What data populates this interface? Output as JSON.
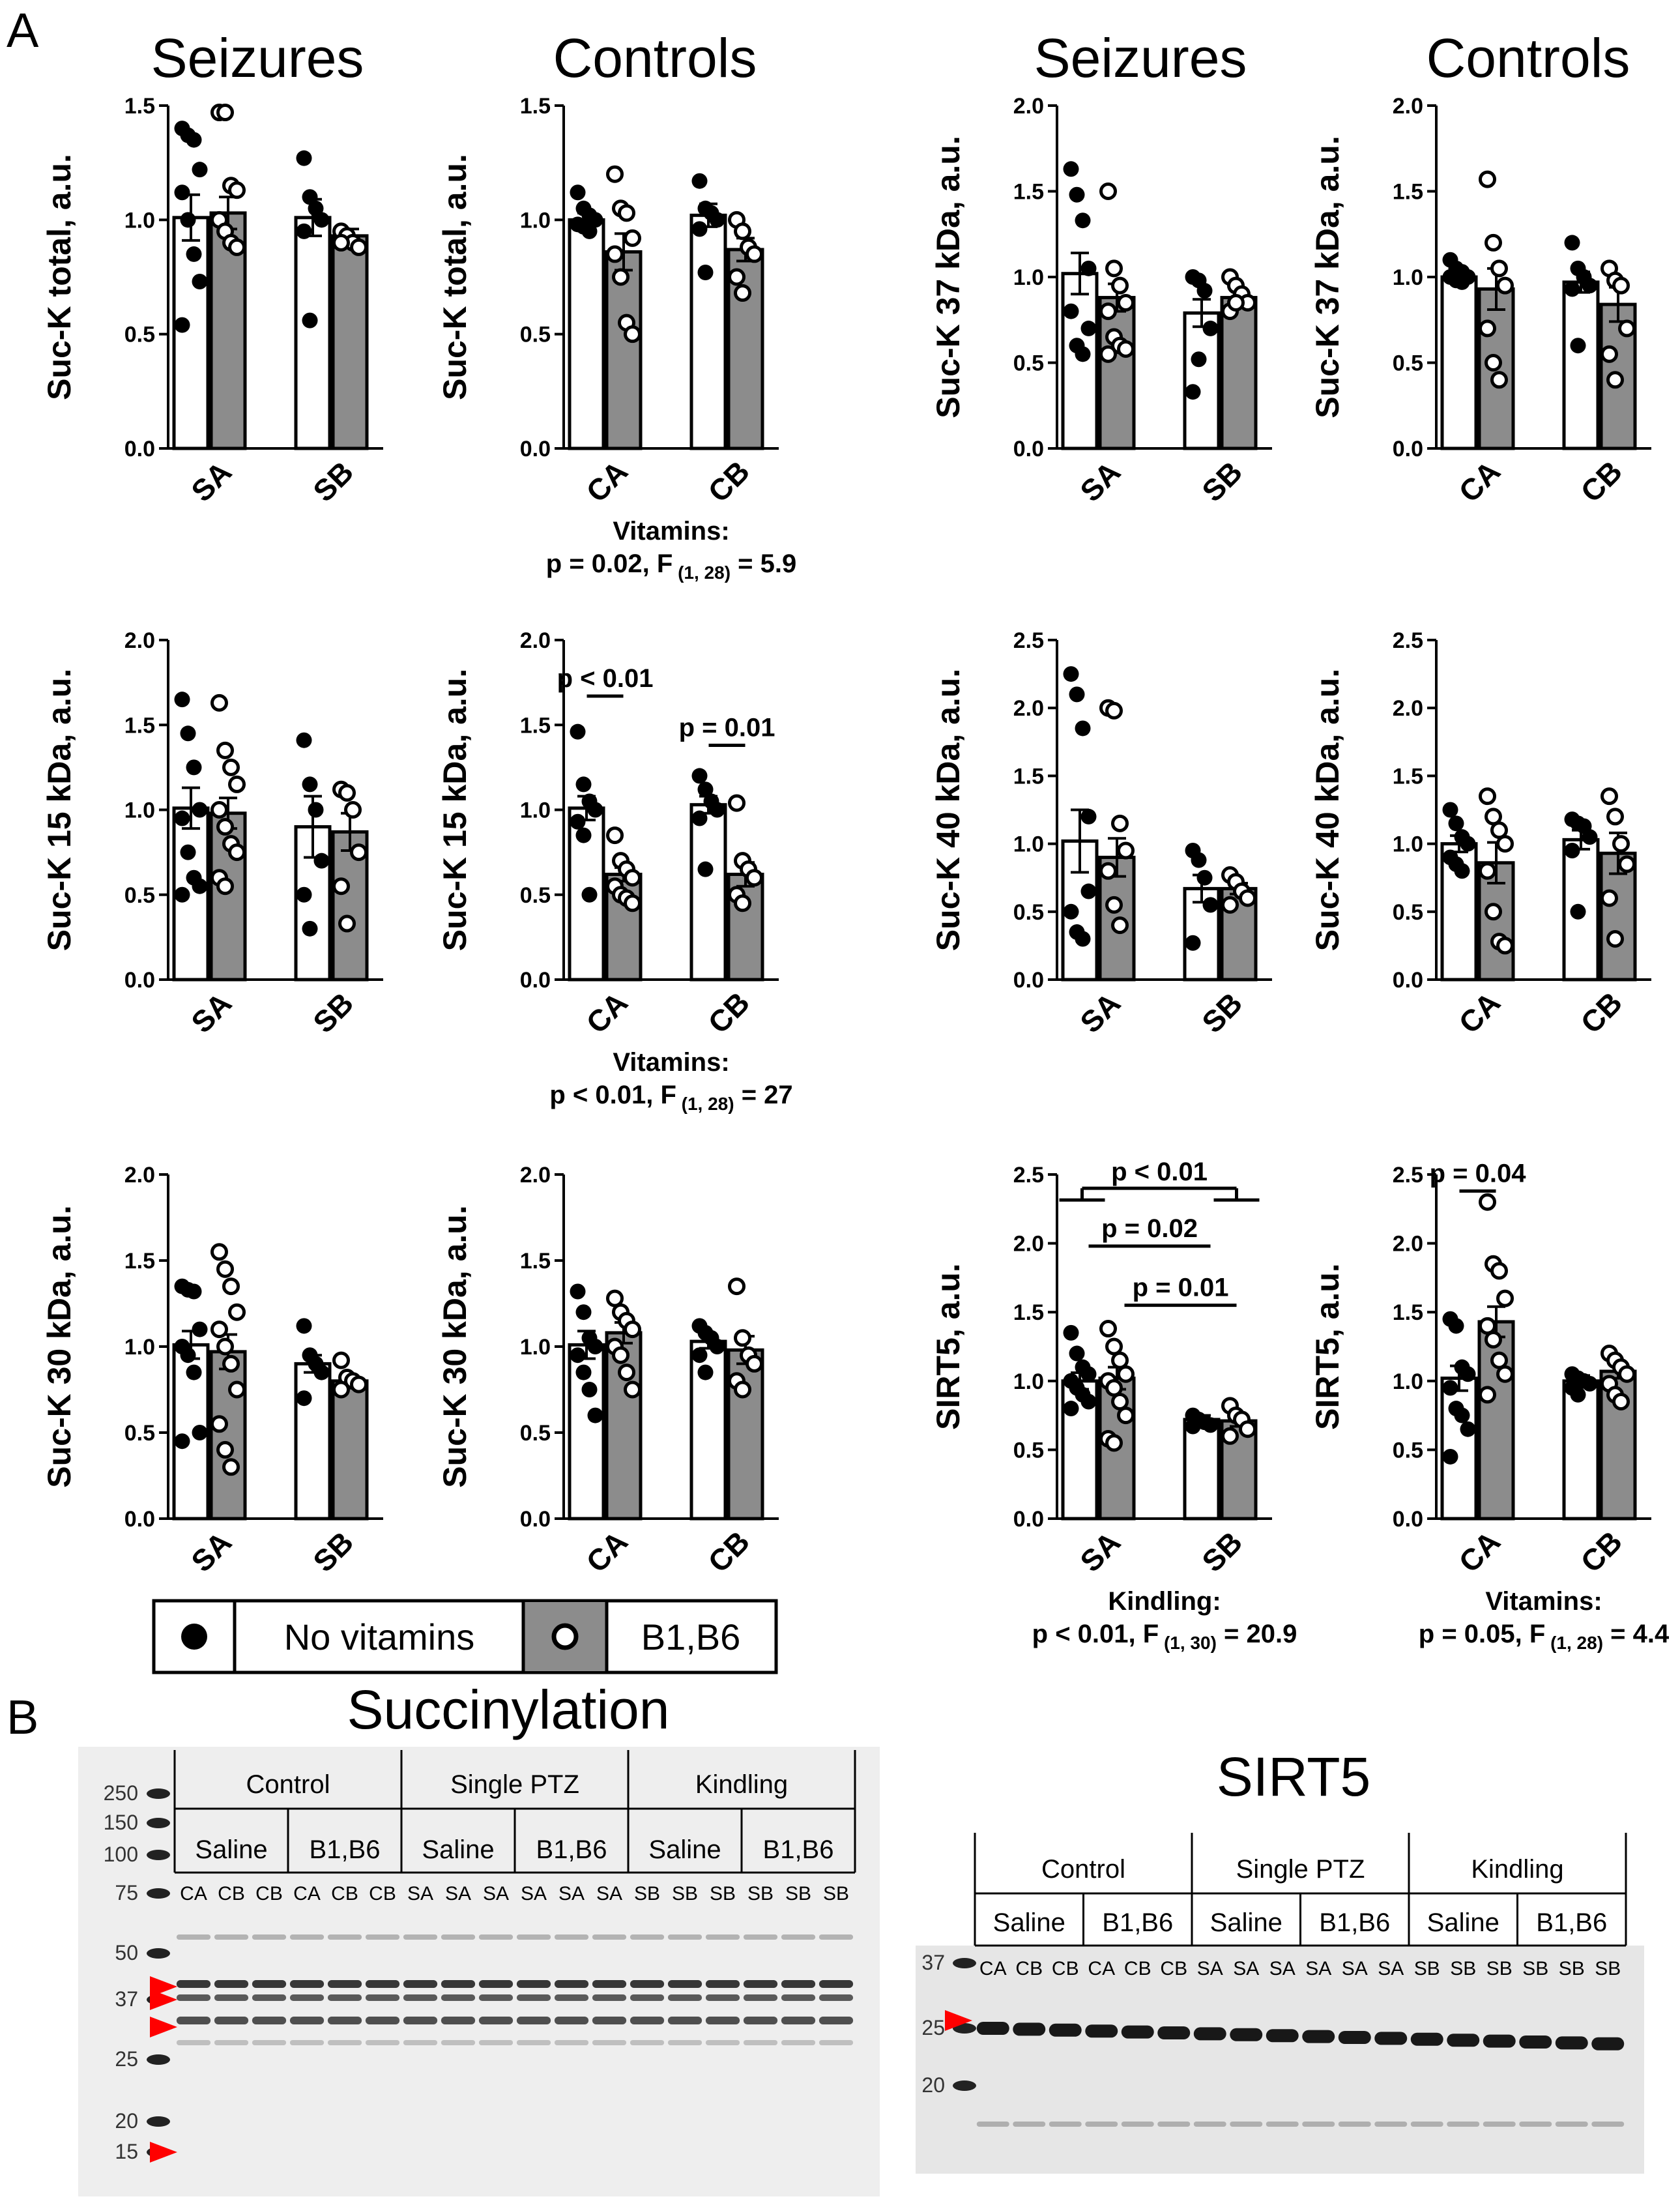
{
  "panel_labels": [
    "A",
    "B"
  ],
  "column_titles": [
    "Seizures",
    "Controls",
    "Seizures",
    "Controls"
  ],
  "legend": {
    "no_vitamins": "No vitamins",
    "b1b6": "B1,B6"
  },
  "colors": {
    "no_vitamins_bar": "#ffffff",
    "b1b6_bar": "#8c8c8c",
    "arrow": "#ff0000"
  },
  "chart_data": [
    {
      "type": "bar",
      "id": "c1",
      "ylabel": "Suc-K total, a.u.",
      "ylim": [
        0,
        1.5
      ],
      "yticks": [
        "0.0",
        "0.5",
        "1.0",
        "1.5"
      ],
      "categories": [
        "SA",
        "SB"
      ],
      "series": [
        {
          "name": "No vitamins",
          "values": [
            1.01,
            1.01
          ],
          "sem": [
            0.1,
            0.08
          ]
        },
        {
          "name": "B1,B6",
          "values": [
            1.03,
            0.93
          ],
          "sem": [
            0.07,
            0.03
          ]
        }
      ],
      "points": [
        [
          [
            1.4,
            1.37,
            1.35,
            1.22,
            1.12,
            1.0,
            0.85,
            0.73,
            0.54
          ],
          [
            1.47,
            1.47,
            1.15,
            1.13,
            1.0,
            0.95,
            0.9,
            0.88
          ]
        ],
        [
          [
            1.27,
            1.1,
            1.05,
            1.0,
            0.95,
            0.56
          ],
          [
            0.95,
            0.93,
            0.9,
            0.88,
            0.9
          ]
        ]
      ],
      "stats": []
    },
    {
      "type": "bar",
      "id": "c2",
      "ylabel": "Suc-K total, a.u.",
      "ylim": [
        0,
        1.5
      ],
      "yticks": [
        "0.0",
        "0.5",
        "1.0",
        "1.5"
      ],
      "categories": [
        "CA",
        "CB"
      ],
      "series": [
        {
          "name": "No vitamins",
          "values": [
            1.0,
            1.02
          ],
          "sem": [
            0.03,
            0.05
          ]
        },
        {
          "name": "B1,B6",
          "values": [
            0.86,
            0.87
          ],
          "sem": [
            0.08,
            0.05
          ]
        }
      ],
      "points": [
        [
          [
            1.12,
            1.05,
            1.02,
            1.0,
            0.98,
            0.97,
            0.95
          ],
          [
            1.2,
            1.05,
            1.03,
            0.92,
            0.85,
            0.75,
            0.55,
            0.5
          ]
        ],
        [
          [
            1.17,
            1.05,
            1.03,
            1.0,
            0.96,
            0.77
          ],
          [
            1.0,
            0.95,
            0.88,
            0.85,
            0.75,
            0.68
          ]
        ]
      ],
      "stats": [],
      "caption": [
        {
          "text": "Vitamins:"
        },
        {
          "text": "p = 0.02, F",
          "sub": "(1, 28)",
          "tail": " = 5.9"
        }
      ]
    },
    {
      "type": "bar",
      "id": "c3",
      "ylabel": "Suc-K 37 kDa, a.u.",
      "ylim": [
        0,
        2.0
      ],
      "yticks": [
        "0.0",
        "0.5",
        "1.0",
        "1.5",
        "2.0"
      ],
      "categories": [
        "SA",
        "SB"
      ],
      "series": [
        {
          "name": "No vitamins",
          "values": [
            1.02,
            0.79
          ],
          "sem": [
            0.12,
            0.08
          ]
        },
        {
          "name": "B1,B6",
          "values": [
            0.88,
            0.88
          ],
          "sem": [
            0.08,
            0.04
          ]
        }
      ],
      "points": [
        [
          [
            1.63,
            1.48,
            1.33,
            1.05,
            0.8,
            0.6,
            0.55,
            0.7
          ],
          [
            1.5,
            1.05,
            0.95,
            0.85,
            0.8,
            0.65,
            0.6,
            0.58,
            0.55
          ]
        ],
        [
          [
            1.0,
            0.98,
            0.92,
            0.7,
            0.33,
            0.52
          ],
          [
            1.0,
            0.95,
            0.9,
            0.85,
            0.8,
            0.85
          ]
        ]
      ],
      "stats": []
    },
    {
      "type": "bar",
      "id": "c4",
      "ylabel": "Suc-K 37 kDa, a.u.",
      "ylim": [
        0,
        2.0
      ],
      "yticks": [
        "0.0",
        "0.5",
        "1.0",
        "1.5",
        "2.0"
      ],
      "categories": [
        "CA",
        "CB"
      ],
      "series": [
        {
          "name": "No vitamins",
          "values": [
            1.0,
            0.97
          ],
          "sem": [
            0.02,
            0.06
          ]
        },
        {
          "name": "B1,B6",
          "values": [
            0.93,
            0.84
          ],
          "sem": [
            0.12,
            0.1
          ]
        }
      ],
      "points": [
        [
          [
            1.1,
            1.05,
            1.03,
            1.0,
            1.0,
            0.98,
            0.97
          ],
          [
            1.57,
            1.2,
            1.05,
            0.95,
            0.7,
            0.5,
            0.4
          ]
        ],
        [
          [
            1.2,
            1.05,
            1.0,
            0.95,
            0.93,
            0.6
          ],
          [
            1.05,
            0.98,
            0.95,
            0.7,
            0.55,
            0.4
          ]
        ]
      ],
      "stats": []
    },
    {
      "type": "bar",
      "id": "c5",
      "ylabel": "Suc-K 15 kDa, a.u.",
      "ylim": [
        0,
        2.0
      ],
      "yticks": [
        "0.0",
        "0.5",
        "1.0",
        "1.5",
        "2.0"
      ],
      "categories": [
        "SA",
        "SB"
      ],
      "series": [
        {
          "name": "No vitamins",
          "values": [
            1.01,
            0.9
          ],
          "sem": [
            0.12,
            0.18
          ]
        },
        {
          "name": "B1,B6",
          "values": [
            0.98,
            0.87
          ],
          "sem": [
            0.09,
            0.11
          ]
        }
      ],
      "points": [
        [
          [
            1.65,
            1.45,
            1.25,
            1.0,
            0.95,
            0.75,
            0.6,
            0.55,
            0.5
          ],
          [
            1.63,
            1.35,
            1.25,
            1.15,
            1.0,
            0.9,
            0.8,
            0.75,
            0.6,
            0.55
          ]
        ],
        [
          [
            1.41,
            1.15,
            1.0,
            0.7,
            0.5,
            0.3
          ],
          [
            1.12,
            1.1,
            1.0,
            0.75,
            0.55,
            0.33
          ]
        ]
      ],
      "stats": []
    },
    {
      "type": "bar",
      "id": "c6",
      "ylabel": "Suc-K 15 kDa, a.u.",
      "ylim": [
        0,
        2.0
      ],
      "yticks": [
        "0.0",
        "0.5",
        "1.0",
        "1.5",
        "2.0"
      ],
      "categories": [
        "CA",
        "CB"
      ],
      "series": [
        {
          "name": "No vitamins",
          "values": [
            1.01,
            1.03
          ],
          "sem": [
            0.07,
            0.05
          ]
        },
        {
          "name": "B1,B6",
          "values": [
            0.62,
            0.62
          ],
          "sem": [
            0.04,
            0.07
          ]
        }
      ],
      "points": [
        [
          [
            1.46,
            1.15,
            1.05,
            1.0,
            0.93,
            0.85,
            0.5
          ],
          [
            0.85,
            0.7,
            0.65,
            0.6,
            0.55,
            0.5,
            0.48,
            0.45
          ]
        ],
        [
          [
            1.2,
            1.12,
            1.05,
            1.0,
            0.95,
            0.65
          ],
          [
            1.04,
            0.7,
            0.65,
            0.6,
            0.5,
            0.45
          ]
        ]
      ],
      "stats": [
        {
          "label": "p < 0.01",
          "x1": 0.72,
          "x2": 1.28,
          "y": 1.67
        },
        {
          "label": "p = 0.01",
          "x1": 1.72,
          "x2": 2.28,
          "y": 1.38
        }
      ],
      "caption": [
        {
          "text": "Vitamins:"
        },
        {
          "text": "p < 0.01, F",
          "sub": "(1, 28)",
          "tail": " = 27"
        }
      ]
    },
    {
      "type": "bar",
      "id": "c7",
      "ylabel": "Suc-K 40 kDa, a.u.",
      "ylim": [
        0,
        2.5
      ],
      "yticks": [
        "0.0",
        "0.5",
        "1.0",
        "1.5",
        "2.0",
        "2.5"
      ],
      "categories": [
        "SA",
        "SB"
      ],
      "series": [
        {
          "name": "No vitamins",
          "values": [
            1.02,
            0.67
          ],
          "sem": [
            0.23,
            0.1
          ]
        },
        {
          "name": "B1,B6",
          "values": [
            0.9,
            0.67
          ],
          "sem": [
            0.14,
            0.04
          ]
        }
      ],
      "points": [
        [
          [
            2.25,
            2.1,
            1.85,
            1.2,
            0.5,
            0.35,
            0.3,
            0.65
          ],
          [
            2.0,
            1.98,
            1.15,
            0.95,
            0.8,
            0.55,
            0.4
          ]
        ],
        [
          [
            0.95,
            0.88,
            0.75,
            0.55,
            0.27
          ],
          [
            0.77,
            0.72,
            0.65,
            0.6,
            0.55
          ]
        ]
      ],
      "stats": []
    },
    {
      "type": "bar",
      "id": "c8",
      "ylabel": "Suc-K 40 kDa, a.u.",
      "ylim": [
        0,
        2.5
      ],
      "yticks": [
        "0.0",
        "0.5",
        "1.0",
        "1.5",
        "2.0",
        "2.5"
      ],
      "categories": [
        "CA",
        "CB"
      ],
      "series": [
        {
          "name": "No vitamins",
          "values": [
            1.0,
            1.03
          ],
          "sem": [
            0.06,
            0.07
          ]
        },
        {
          "name": "B1,B6",
          "values": [
            0.86,
            0.93
          ],
          "sem": [
            0.15,
            0.15
          ]
        }
      ],
      "points": [
        [
          [
            1.25,
            1.15,
            1.05,
            1.0,
            0.9,
            0.85,
            0.8
          ],
          [
            1.35,
            1.2,
            1.1,
            1.0,
            0.8,
            0.5,
            0.28,
            0.25
          ]
        ],
        [
          [
            1.18,
            1.15,
            1.13,
            1.05,
            0.95,
            0.5
          ],
          [
            1.35,
            1.2,
            1.0,
            0.85,
            0.6,
            0.3
          ]
        ]
      ],
      "stats": []
    },
    {
      "type": "bar",
      "id": "c9",
      "ylabel": "Suc-K 30 kDa, a.u.",
      "ylim": [
        0,
        2.0
      ],
      "yticks": [
        "0.0",
        "0.5",
        "1.0",
        "1.5",
        "2.0"
      ],
      "categories": [
        "SA",
        "SB"
      ],
      "series": [
        {
          "name": "No vitamins",
          "values": [
            1.01,
            0.9
          ],
          "sem": [
            0.08,
            0.05
          ]
        },
        {
          "name": "B1,B6",
          "values": [
            0.97,
            0.8
          ],
          "sem": [
            0.1,
            0.02
          ]
        }
      ],
      "points": [
        [
          [
            1.35,
            1.33,
            1.32,
            1.1,
            1.0,
            0.95,
            0.85,
            0.5,
            0.45
          ],
          [
            1.55,
            1.45,
            1.35,
            1.2,
            1.1,
            1.0,
            0.9,
            0.75,
            0.55,
            0.4,
            0.3
          ]
        ],
        [
          [
            1.12,
            0.95,
            0.9,
            0.85,
            0.7
          ],
          [
            0.92,
            0.82,
            0.8,
            0.78,
            0.75
          ]
        ]
      ],
      "stats": []
    },
    {
      "type": "bar",
      "id": "c10",
      "ylabel": "Suc-K 30 kDa, a.u.",
      "ylim": [
        0,
        2.0
      ],
      "yticks": [
        "0.0",
        "0.5",
        "1.0",
        "1.5",
        "2.0"
      ],
      "categories": [
        "CA",
        "CB"
      ],
      "series": [
        {
          "name": "No vitamins",
          "values": [
            1.01,
            1.03
          ],
          "sem": [
            0.08,
            0.04
          ]
        },
        {
          "name": "B1,B6",
          "values": [
            1.08,
            0.98
          ],
          "sem": [
            0.06,
            0.08
          ]
        }
      ],
      "points": [
        [
          [
            1.32,
            1.2,
            1.05,
            1.0,
            0.95,
            0.85,
            0.75,
            0.6
          ],
          [
            1.28,
            1.2,
            1.15,
            1.1,
            1.0,
            0.95,
            0.85,
            0.75
          ]
        ],
        [
          [
            1.12,
            1.08,
            1.05,
            1.0,
            0.95,
            0.85
          ],
          [
            1.35,
            1.05,
            0.95,
            0.9,
            0.8,
            0.75
          ]
        ]
      ],
      "stats": []
    },
    {
      "type": "bar",
      "id": "c11",
      "ylabel": "SIRT5, a.u.",
      "ylim": [
        0,
        2.5
      ],
      "yticks": [
        "0.0",
        "0.5",
        "1.0",
        "1.5",
        "2.0",
        "2.5"
      ],
      "categories": [
        "SA",
        "SB"
      ],
      "series": [
        {
          "name": "No vitamins",
          "values": [
            1.0,
            0.72
          ],
          "sem": [
            0.06,
            0.03
          ]
        },
        {
          "name": "B1,B6",
          "values": [
            1.02,
            0.71
          ],
          "sem": [
            0.08,
            0.04
          ]
        }
      ],
      "points": [
        [
          [
            1.35,
            1.2,
            1.1,
            1.05,
            1.0,
            0.95,
            0.9,
            0.85,
            0.8
          ],
          [
            1.38,
            1.25,
            1.15,
            1.05,
            1.0,
            0.95,
            0.85,
            0.75,
            0.58,
            0.55
          ]
        ],
        [
          [
            0.75,
            0.72,
            0.7,
            0.68,
            0.67
          ],
          [
            0.82,
            0.75,
            0.72,
            0.65,
            0.6
          ]
        ]
      ],
      "stats": [
        {
          "label": "p = 0.02",
          "x1": 0.85,
          "x2": 1.85,
          "y": 1.98
        },
        {
          "label": "p = 0.01",
          "x1": 1.4,
          "x2": 2.25,
          "y": 1.55
        },
        {
          "label": "p < 0.01",
          "bracket": true,
          "x1": 1.0,
          "x2": 2.0,
          "y": 2.4
        }
      ],
      "caption": [
        {
          "text": "Kindling:"
        },
        {
          "text": "p < 0.01, F",
          "sub": "(1, 30)",
          "tail": " = 20.9"
        }
      ]
    },
    {
      "type": "bar",
      "id": "c12",
      "ylabel": "SIRT5, a.u.",
      "ylim": [
        0,
        2.5
      ],
      "yticks": [
        "0.0",
        "0.5",
        "1.0",
        "1.5",
        "2.0",
        "2.5"
      ],
      "categories": [
        "CA",
        "CB"
      ],
      "series": [
        {
          "name": "No vitamins",
          "values": [
            1.02,
            1.0
          ],
          "sem": [
            0.09,
            0.04
          ]
        },
        {
          "name": "B1,B6",
          "values": [
            1.43,
            1.07
          ],
          "sem": [
            0.11,
            0.05
          ]
        }
      ],
      "points": [
        [
          [
            1.45,
            1.4,
            1.1,
            1.05,
            0.95,
            0.8,
            0.75,
            0.65,
            0.45
          ],
          [
            2.3,
            1.85,
            1.8,
            1.6,
            1.4,
            1.3,
            1.15,
            1.05,
            0.9
          ]
        ],
        [
          [
            1.05,
            1.02,
            1.0,
            0.98,
            0.95,
            0.9
          ],
          [
            1.2,
            1.15,
            1.1,
            1.05,
            0.98,
            0.9,
            0.85
          ]
        ]
      ],
      "stats": [
        {
          "label": "p = 0.04",
          "x1": 0.72,
          "x2": 1.28,
          "y": 2.38
        }
      ],
      "caption": [
        {
          "text": "Vitamins:"
        },
        {
          "text": "p = 0.05, F",
          "sub": "(1, 28)",
          "tail": " = 4.4"
        }
      ]
    }
  ],
  "blots": [
    {
      "id": "succ",
      "title": "Succinylation",
      "groups": [
        "Control",
        "Single PTZ",
        "Kindling"
      ],
      "subgroups": [
        "Saline",
        "B1,B6",
        "Saline",
        "B1,B6",
        "Saline",
        "B1,B6"
      ],
      "lanes": [
        [
          "CA",
          "CB",
          "CB"
        ],
        [
          "CA",
          "CB",
          "CB"
        ],
        [
          "SA",
          "SA",
          "SA"
        ],
        [
          "SA",
          "SA",
          "SA"
        ],
        [
          "SB",
          "SB",
          "SB"
        ],
        [
          "SB",
          "SB",
          "SB"
        ]
      ],
      "ladder": [
        "250",
        "150",
        "100",
        "75",
        "50",
        "37",
        "25",
        "20",
        "15"
      ]
    },
    {
      "id": "sirt5",
      "title": "SIRT5",
      "groups": [
        "Control",
        "Single PTZ",
        "Kindling"
      ],
      "subgroups": [
        "Saline",
        "B1,B6",
        "Saline",
        "B1,B6",
        "Saline",
        "B1,B6"
      ],
      "lanes": [
        [
          "CA",
          "CB",
          "CB"
        ],
        [
          "CA",
          "CB",
          "CB"
        ],
        [
          "SA",
          "SA",
          "SA"
        ],
        [
          "SA",
          "SA",
          "SA"
        ],
        [
          "SB",
          "SB",
          "SB"
        ],
        [
          "SB",
          "SB",
          "SB"
        ]
      ],
      "ladder": [
        "37",
        "25",
        "20"
      ]
    }
  ]
}
